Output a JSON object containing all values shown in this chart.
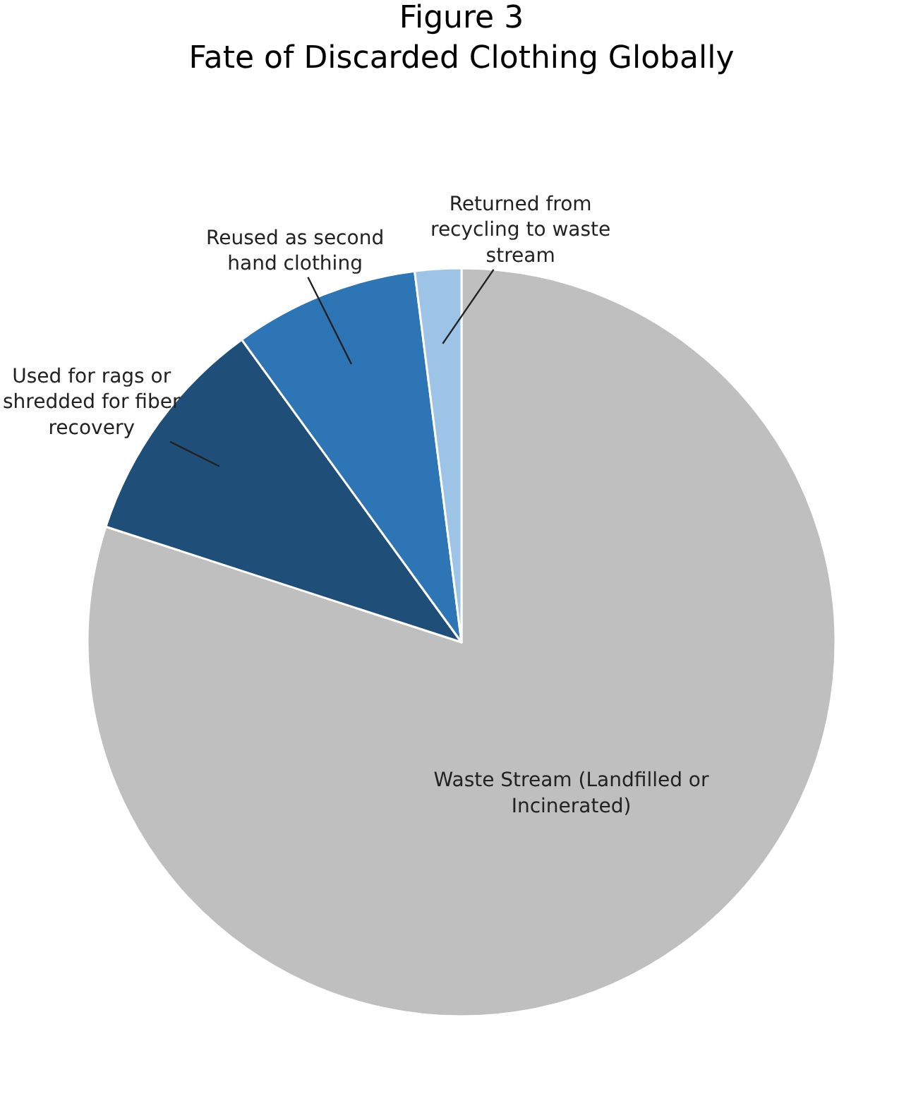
{
  "chart_data": {
    "type": "pie",
    "title": "Figure 3",
    "subtitle": "Fate of Discarded Clothing Globally",
    "categories": [
      "Waste Stream (Landfilled or Incinerated)",
      "Used for rags or shredded for fiber recovery",
      "Reused as second hand clothing",
      "Returned from recycling to waste stream"
    ],
    "values": [
      80,
      10,
      8,
      2
    ],
    "colors": [
      "#bfbfbf",
      "#1f4e79",
      "#2e75b6",
      "#9dc3e6"
    ],
    "legend": false
  }
}
